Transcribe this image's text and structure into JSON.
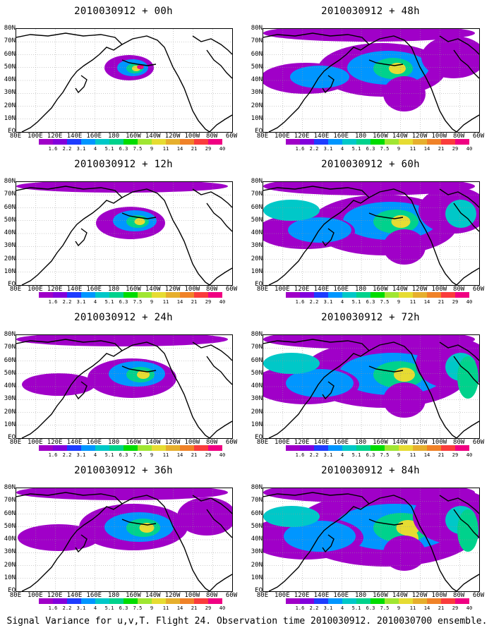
{
  "caption": "Signal Variance for u,v,T. Flight 24. Observation time 2010030912. 2010030700 ensemble.",
  "lat_labels": [
    "80N",
    "70N",
    "60N",
    "50N",
    "40N",
    "30N",
    "20N",
    "10N",
    "EQ"
  ],
  "lon_labels": [
    "80E",
    "100E",
    "120E",
    "140E",
    "160E",
    "180",
    "160W",
    "140W",
    "120W",
    "100W",
    "80W",
    "60W"
  ],
  "colorbar": {
    "labels": [
      "1.6",
      "2.2",
      "3.1",
      "4",
      "5.1",
      "6.3",
      "7.5",
      "9",
      "11",
      "14",
      "21",
      "29",
      "40"
    ],
    "colors": [
      "#a000c8",
      "#8200dc",
      "#1e3cff",
      "#0096ff",
      "#00c8c8",
      "#00d28c",
      "#00dc00",
      "#a0e632",
      "#e6dc32",
      "#e6af2d",
      "#f08228",
      "#fa3c3c",
      "#f00082"
    ]
  },
  "panels": [
    {
      "title": "2010030912 + 00h",
      "level": 0
    },
    {
      "title": "2010030912 + 48h",
      "level": 4
    },
    {
      "title": "2010030912 + 12h",
      "level": 1
    },
    {
      "title": "2010030912 + 60h",
      "level": 5
    },
    {
      "title": "2010030912 + 24h",
      "level": 2
    },
    {
      "title": "2010030912 + 72h",
      "level": 6
    },
    {
      "title": "2010030912 + 36h",
      "level": 3
    },
    {
      "title": "2010030912 + 84h",
      "level": 7
    }
  ]
}
